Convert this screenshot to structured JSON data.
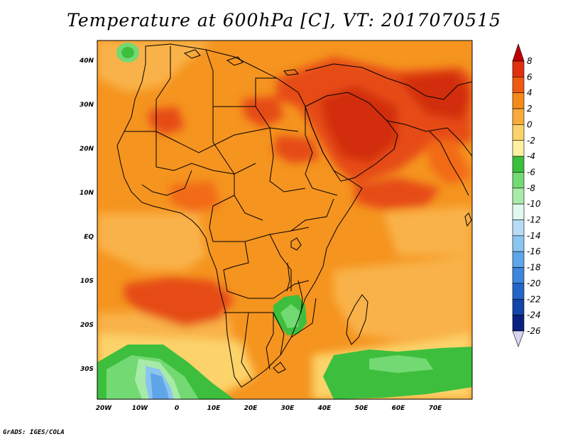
{
  "title": "Temperature at 600hPa [C], VT: 2017070515",
  "footer": "GrADS: IGES/COLA",
  "map": {
    "region": "Africa and Arabian Peninsula",
    "variable": "Temperature",
    "level": "600hPa",
    "units": "C",
    "valid_time": "2017070515",
    "lat_labels": [
      "40N",
      "30N",
      "20N",
      "10N",
      "EQ",
      "10S",
      "20S",
      "30S"
    ],
    "lon_labels": [
      "20W",
      "10W",
      "0",
      "10E",
      "20E",
      "30E",
      "40E",
      "50E",
      "60E",
      "70E"
    ]
  },
  "colorbar": {
    "labels": [
      "8",
      "6",
      "4",
      "2",
      "0",
      "-2",
      "-4",
      "-6",
      "-8",
      "-10",
      "-12",
      "-14",
      "-16",
      "-18",
      "-20",
      "-22",
      "-24",
      "-26"
    ],
    "colors": [
      "#c00000",
      "#e03010",
      "#f05a10",
      "#f58a1a",
      "#f9aa3a",
      "#fcd36a",
      "#fdf0a0",
      "#3dbf3d",
      "#73d973",
      "#a8eba8",
      "#e0f8f0",
      "#b8dcf5",
      "#8cc4f0",
      "#5fa6e8",
      "#3c86dc",
      "#2466c8",
      "#1444a8",
      "#0a2080",
      "#d9d4f0"
    ]
  },
  "palette": {
    "orange": "#f5941f",
    "light_orange": "#f9b24a",
    "red": "#e64b16",
    "dark_red": "#d22d0e",
    "yellow": "#fcd36a",
    "green": "#3dbf3d",
    "light_green": "#73d973",
    "blue": "#5fa6e8"
  }
}
